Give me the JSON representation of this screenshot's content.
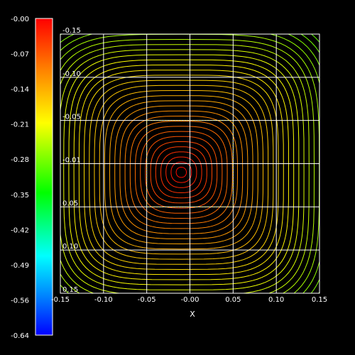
{
  "chart_data": {
    "type": "contour",
    "xlabel": "X",
    "ylabel": "",
    "xlim": [
      -0.15,
      0.15
    ],
    "ylim": [
      -0.15,
      0.15
    ],
    "x_ticks": [
      "-0.15",
      "-0.10",
      "-0.05",
      "-0.00",
      "0.05",
      "0.10",
      "0.15"
    ],
    "y_ticks": [
      "-0.15",
      "-0.10",
      "-0.05",
      "-0.01",
      "0.05",
      "0.10",
      "0.15"
    ],
    "colorbar": {
      "min": -0.64,
      "max": -0.0,
      "ticks": [
        "-0.00",
        "-0.07",
        "-0.14",
        "-0.21",
        "-0.28",
        "-0.35",
        "-0.42",
        "-0.49",
        "-0.56",
        "-0.64"
      ]
    },
    "field": {
      "center": [
        -0.01,
        -0.01
      ],
      "value_at_center": -0.0,
      "min_value": -0.64,
      "contour_levels": 38
    },
    "grid": true,
    "colors": {
      "background": "#000000",
      "grid": "#ffffff",
      "colormap": [
        "#ff0000",
        "#ff8000",
        "#ffff00",
        "#00ff00",
        "#00ffff",
        "#0080ff",
        "#0000ff"
      ]
    }
  }
}
